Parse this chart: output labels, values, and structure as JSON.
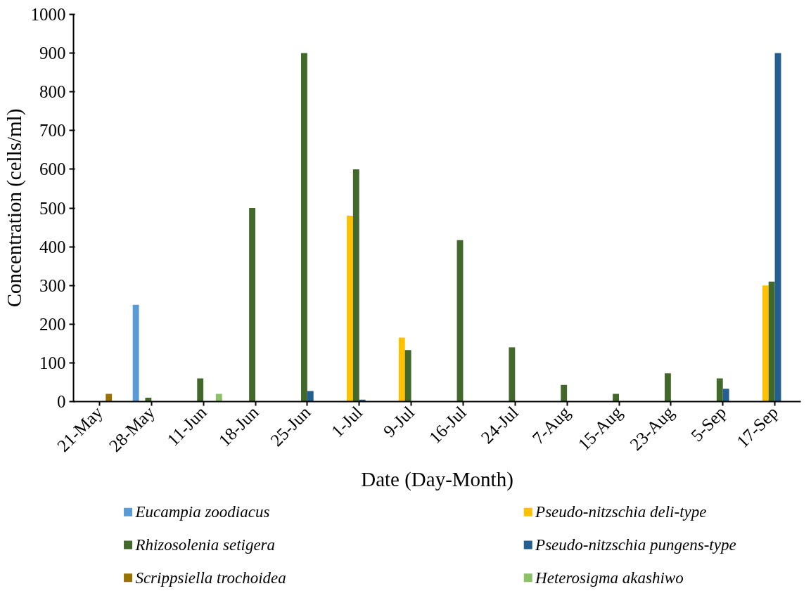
{
  "chart_data": {
    "type": "bar",
    "xlabel": "Date (Day-Month)",
    "ylabel": "Concentration (cells/ml)",
    "categories": [
      "21-May",
      "28-May",
      "11-Jun",
      "18-Jun",
      "25-Jun",
      "1-Jul",
      "9-Jul",
      "16-Jul",
      "24-Jul",
      "7-Aug",
      "15-Aug",
      "23-Aug",
      "5-Sep",
      "17-Sep"
    ],
    "series": [
      {
        "name": "Eucampia zoodiacus",
        "color": "#5b9bd5",
        "values": [
          null,
          250,
          null,
          null,
          null,
          null,
          null,
          null,
          null,
          null,
          null,
          null,
          null,
          null
        ]
      },
      {
        "name": "Pseudo-nitzschia deli-type",
        "color": "#ffc000",
        "values": [
          null,
          null,
          null,
          null,
          null,
          480,
          165,
          null,
          null,
          null,
          null,
          null,
          null,
          300
        ]
      },
      {
        "name": "Rhizosolenia setigera",
        "color": "#43682b",
        "values": [
          null,
          10,
          60,
          500,
          900,
          600,
          133,
          417,
          140,
          43,
          20,
          73,
          60,
          310
        ]
      },
      {
        "name": "Pseudo-nitzschia pungens-type",
        "color": "#255e91",
        "values": [
          null,
          null,
          null,
          null,
          27,
          5,
          null,
          null,
          null,
          null,
          null,
          null,
          33,
          900
        ]
      },
      {
        "name": "Scrippsiella trochoidea",
        "color": "#997300",
        "values": [
          20,
          null,
          null,
          null,
          null,
          null,
          null,
          null,
          null,
          null,
          null,
          null,
          null,
          null
        ]
      },
      {
        "name": "Heterosigma akashiwo",
        "color": "#8cc168",
        "values": [
          null,
          null,
          20,
          null,
          null,
          null,
          null,
          null,
          null,
          null,
          null,
          null,
          null,
          null
        ]
      }
    ],
    "ylim": [
      0,
      1000
    ],
    "yticks": [
      0,
      100,
      200,
      300,
      400,
      500,
      600,
      700,
      800,
      900,
      1000
    ],
    "grid": false,
    "legend": "bottom"
  }
}
